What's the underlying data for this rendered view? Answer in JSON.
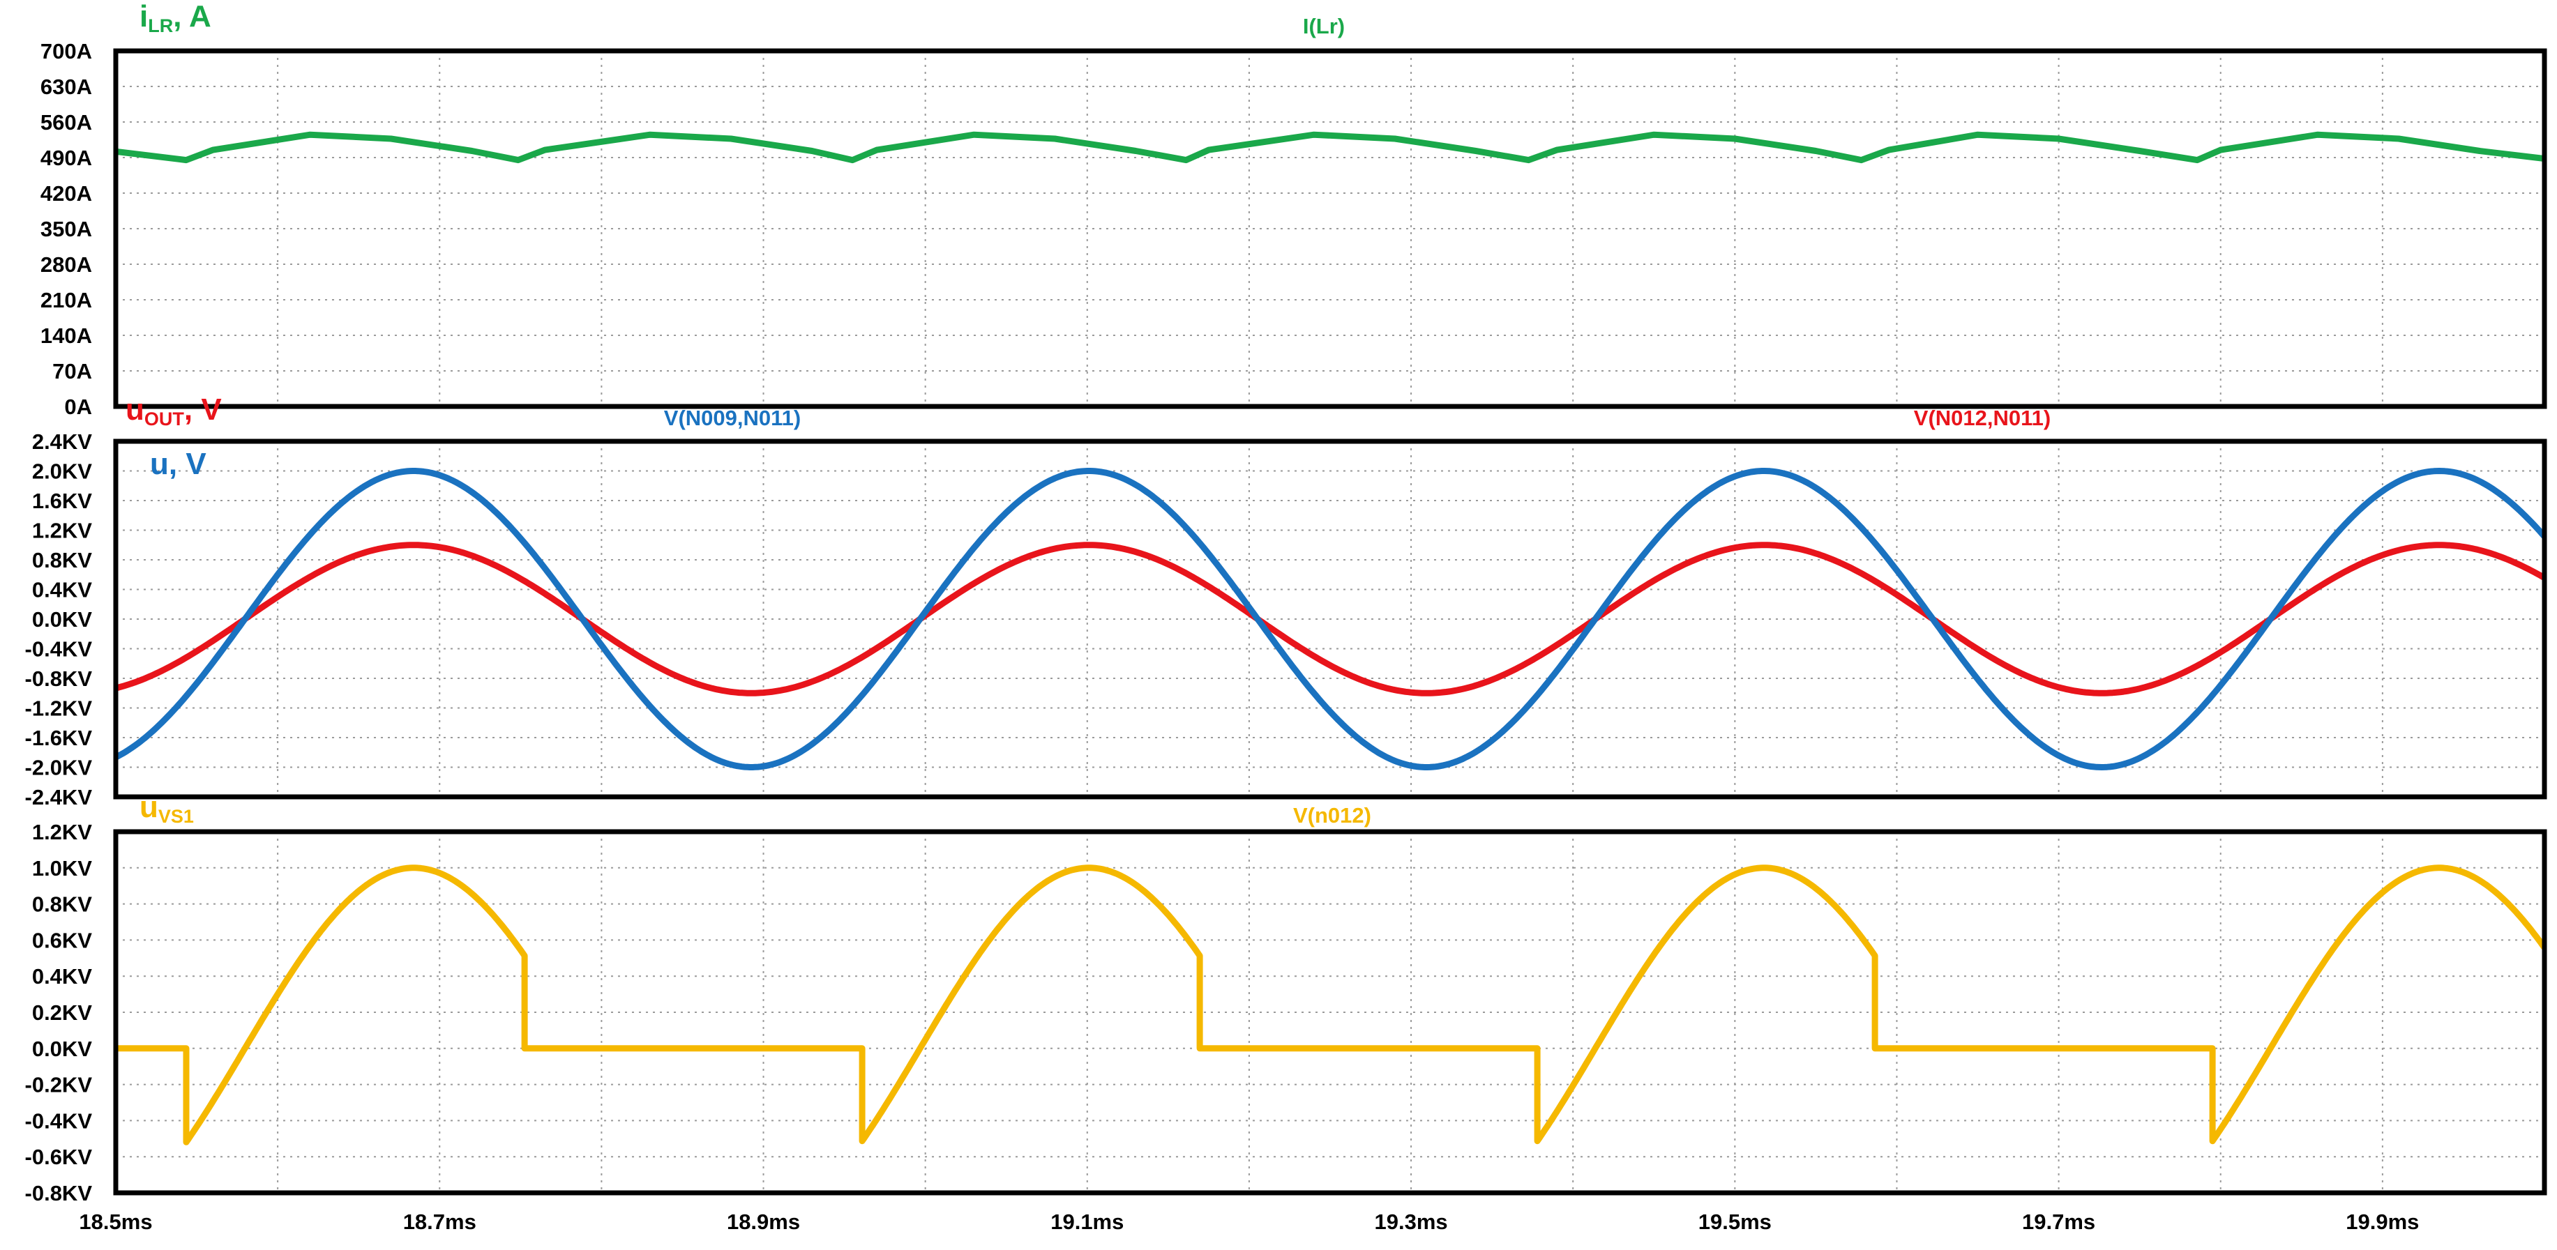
{
  "chart_data": [
    {
      "type": "line",
      "axis_title": {
        "main": "i",
        "sub": "LR",
        "rest": ", A"
      },
      "ylim": [
        0,
        700
      ],
      "y_ticks": [
        "0A",
        "70A",
        "140A",
        "210A",
        "280A",
        "350A",
        "420A",
        "490A",
        "560A",
        "630A",
        "700A"
      ],
      "grid": true,
      "series": [
        {
          "name": "I(Lr)",
          "color": "#1aa84a",
          "points": [
            [
              18.5,
              502
            ],
            [
              18.5435,
              485
            ],
            [
              18.56,
              505
            ],
            [
              18.62,
              535
            ],
            [
              18.67,
              527
            ],
            [
              18.72,
              503
            ],
            [
              18.7485,
              485
            ],
            [
              18.765,
              505
            ],
            [
              18.83,
              535
            ],
            [
              18.88,
              527
            ],
            [
              18.93,
              503
            ],
            [
              18.955,
              485
            ],
            [
              18.97,
              505
            ],
            [
              19.03,
              535
            ],
            [
              19.08,
              527
            ],
            [
              19.13,
              503
            ],
            [
              19.161,
              485
            ],
            [
              19.175,
              505
            ],
            [
              19.24,
              535
            ],
            [
              19.29,
              527
            ],
            [
              19.34,
              503
            ],
            [
              19.3725,
              485
            ],
            [
              19.39,
              505
            ],
            [
              19.45,
              535
            ],
            [
              19.5,
              527
            ],
            [
              19.55,
              503
            ],
            [
              19.578,
              485
            ],
            [
              19.595,
              505
            ],
            [
              19.65,
              535
            ],
            [
              19.7,
              527
            ],
            [
              19.75,
              503
            ],
            [
              19.7855,
              485
            ],
            [
              19.8,
              505
            ],
            [
              19.86,
              535
            ],
            [
              19.91,
              527
            ],
            [
              19.96,
              503
            ],
            [
              20.0,
              488
            ]
          ]
        }
      ]
    },
    {
      "type": "line",
      "axis_titles": [
        {
          "main": "u",
          "sub": "OUT",
          "rest": ", V",
          "color": "#e8141b"
        },
        {
          "main": "u",
          "sub": "",
          "rest": ", V",
          "color": "#1a72c0"
        }
      ],
      "ylim": [
        -2.4,
        2.4
      ],
      "y_ticks": [
        "-2.4KV",
        "-2.0KV",
        "-1.6KV",
        "-1.2KV",
        "-0.8KV",
        "-0.4KV",
        "0.0KV",
        "0.4KV",
        "0.8KV",
        "1.2KV",
        "1.6KV",
        "2.0KV",
        "2.4KV"
      ],
      "grid": true,
      "series": [
        {
          "name": "V(N009,N011)",
          "color": "#1a72c0",
          "waveform": "sine",
          "amplitude": 2.0,
          "period_ms": 0.417,
          "peak_at_ms": 18.684
        },
        {
          "name": "V(N012,N011)",
          "color": "#e8141b",
          "waveform": "sine",
          "amplitude": 1.0,
          "period_ms": 0.417,
          "peak_at_ms": 18.684
        }
      ]
    },
    {
      "type": "line",
      "axis_title": {
        "main": "u",
        "sub": "VS1",
        "rest": "",
        "color": "#f5b800"
      },
      "ylim": [
        -0.8,
        1.2
      ],
      "y_ticks": [
        "-0.8KV",
        "-0.6KV",
        "-0.4KV",
        "-0.2KV",
        "0.0KV",
        "0.2KV",
        "0.4KV",
        "0.6KV",
        "0.8KV",
        "1.0KV",
        "1.2KV"
      ],
      "grid": true,
      "series": [
        {
          "name": "V(n012)",
          "color": "#f5b800",
          "waveform": "switch",
          "period_ms": 0.417,
          "peak_at_ms": 18.684,
          "amplitude": 1.0,
          "on_intervals_ms": [
            [
              18.5435,
              18.7525
            ],
            [
              18.961,
              19.1695
            ],
            [
              19.378,
              19.5865
            ],
            [
              19.795,
              20.0
            ]
          ]
        }
      ]
    }
  ],
  "x_axis": {
    "xlim": [
      18.5,
      20.0
    ],
    "grid_step_ms": 0.1,
    "ticks": [
      "18.5ms",
      "18.7ms",
      "18.9ms",
      "19.1ms",
      "19.3ms",
      "19.5ms",
      "19.7ms",
      "19.9ms"
    ]
  }
}
